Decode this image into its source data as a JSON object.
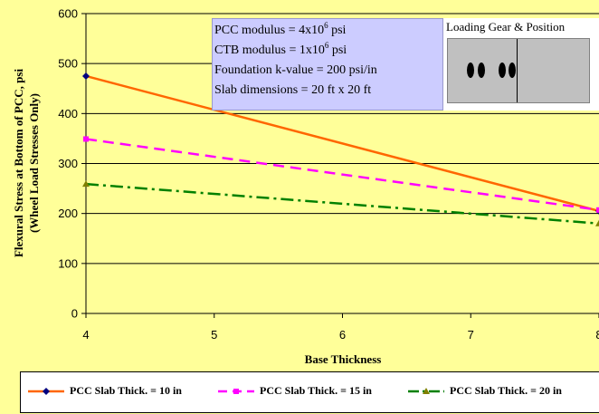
{
  "chart_data": {
    "type": "line",
    "xlabel": "Base Thickness",
    "ylabel": "Flexural Stress at Bottom of PCC, psi",
    "ylabel2": "(Wheel Load Stresses Only)",
    "xlim": [
      4,
      8
    ],
    "ylim": [
      0,
      600
    ],
    "x_ticks": [
      "4",
      "5",
      "6",
      "7",
      "8"
    ],
    "y_ticks": [
      "0",
      "100",
      "200",
      "300",
      "400",
      "500",
      "600"
    ],
    "grid": "horizontal",
    "legend_position": "bottom",
    "series": [
      {
        "name": "PCC Slab Thick. = 10 in",
        "x": [
          4,
          8
        ],
        "y": [
          475,
          205
        ],
        "color": "#FF6600",
        "dash": "solid",
        "marker": "diamond"
      },
      {
        "name": "PCC Slab Thick. = 15 in",
        "x": [
          4,
          8
        ],
        "y": [
          349,
          207
        ],
        "color": "#FF00FF",
        "dash": "dashed",
        "marker": "square"
      },
      {
        "name": "PCC Slab Thick. = 20 in",
        "x": [
          4,
          8
        ],
        "y": [
          259,
          180
        ],
        "color": "#008000",
        "dash": "dashdot",
        "marker": "triangle"
      }
    ]
  },
  "info_box": {
    "line1_prefix": "PCC modulus = 4x10",
    "line1_exp": "6",
    "line1_suffix": " psi",
    "line2_prefix": "CTB modulus = 1x10",
    "line2_exp": "6",
    "line2_suffix": " psi",
    "line3": "Foundation k-value = 200 psi/in",
    "line4": "Slab dimensions = 20 ft x 20 ft"
  },
  "loading_gear": {
    "title": "Loading Gear & Position"
  }
}
